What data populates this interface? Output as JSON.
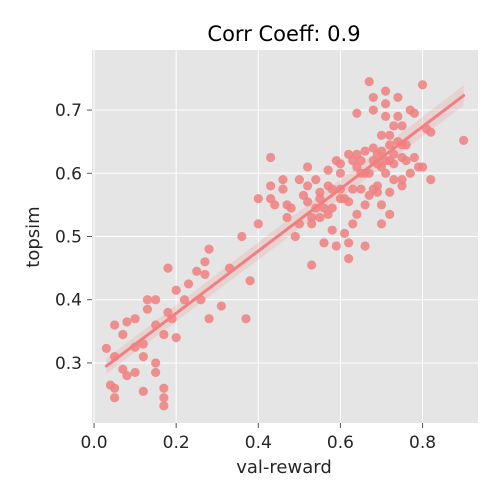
{
  "chart_data": {
    "type": "scatter",
    "title": "Corr Coeff: 0.9",
    "xlabel": "val-reward",
    "ylabel": "topsim",
    "xlim": [
      -0.005,
      0.935
    ],
    "ylim": [
      0.205,
      0.795
    ],
    "x_ticks": [
      "0.0",
      "0.2",
      "0.4",
      "0.6",
      "0.8"
    ],
    "x_tick_values": [
      0.0,
      0.2,
      0.4,
      0.6,
      0.8
    ],
    "y_ticks": [
      "0.3",
      "0.4",
      "0.5",
      "0.6",
      "0.7"
    ],
    "y_tick_values": [
      0.3,
      0.4,
      0.5,
      0.6,
      0.7
    ],
    "grid": true,
    "background": "#e5e5e5",
    "point_color": "#f08080",
    "regression": {
      "x": [
        0.03,
        0.9
      ],
      "y": [
        0.295,
        0.723
      ]
    },
    "points": [
      [
        0.03,
        0.323
      ],
      [
        0.04,
        0.265
      ],
      [
        0.05,
        0.245
      ],
      [
        0.05,
        0.26
      ],
      [
        0.05,
        0.36
      ],
      [
        0.05,
        0.31
      ],
      [
        0.07,
        0.345
      ],
      [
        0.07,
        0.29
      ],
      [
        0.08,
        0.28
      ],
      [
        0.08,
        0.365
      ],
      [
        0.1,
        0.37
      ],
      [
        0.1,
        0.325
      ],
      [
        0.1,
        0.285
      ],
      [
        0.12,
        0.255
      ],
      [
        0.12,
        0.31
      ],
      [
        0.12,
        0.33
      ],
      [
        0.13,
        0.385
      ],
      [
        0.13,
        0.4
      ],
      [
        0.15,
        0.4
      ],
      [
        0.15,
        0.36
      ],
      [
        0.15,
        0.3
      ],
      [
        0.15,
        0.285
      ],
      [
        0.17,
        0.26
      ],
      [
        0.17,
        0.245
      ],
      [
        0.17,
        0.232
      ],
      [
        0.17,
        0.345
      ],
      [
        0.18,
        0.38
      ],
      [
        0.18,
        0.45
      ],
      [
        0.19,
        0.37
      ],
      [
        0.2,
        0.415
      ],
      [
        0.2,
        0.34
      ],
      [
        0.22,
        0.4
      ],
      [
        0.23,
        0.425
      ],
      [
        0.25,
        0.445
      ],
      [
        0.26,
        0.4
      ],
      [
        0.27,
        0.44
      ],
      [
        0.27,
        0.46
      ],
      [
        0.28,
        0.48
      ],
      [
        0.28,
        0.37
      ],
      [
        0.31,
        0.39
      ],
      [
        0.33,
        0.45
      ],
      [
        0.36,
        0.5
      ],
      [
        0.37,
        0.37
      ],
      [
        0.38,
        0.43
      ],
      [
        0.4,
        0.52
      ],
      [
        0.4,
        0.56
      ],
      [
        0.43,
        0.56
      ],
      [
        0.43,
        0.58
      ],
      [
        0.43,
        0.625
      ],
      [
        0.44,
        0.55
      ],
      [
        0.46,
        0.59
      ],
      [
        0.46,
        0.575
      ],
      [
        0.47,
        0.55
      ],
      [
        0.47,
        0.53
      ],
      [
        0.48,
        0.545
      ],
      [
        0.49,
        0.5
      ],
      [
        0.5,
        0.52
      ],
      [
        0.5,
        0.59
      ],
      [
        0.51,
        0.565
      ],
      [
        0.52,
        0.61
      ],
      [
        0.52,
        0.58
      ],
      [
        0.52,
        0.555
      ],
      [
        0.53,
        0.53
      ],
      [
        0.53,
        0.52
      ],
      [
        0.53,
        0.455
      ],
      [
        0.54,
        0.545
      ],
      [
        0.54,
        0.59
      ],
      [
        0.55,
        0.57
      ],
      [
        0.55,
        0.53
      ],
      [
        0.55,
        0.56
      ],
      [
        0.56,
        0.545
      ],
      [
        0.56,
        0.49
      ],
      [
        0.57,
        0.605
      ],
      [
        0.57,
        0.58
      ],
      [
        0.57,
        0.535
      ],
      [
        0.58,
        0.575
      ],
      [
        0.58,
        0.545
      ],
      [
        0.58,
        0.51
      ],
      [
        0.59,
        0.485
      ],
      [
        0.59,
        0.62
      ],
      [
        0.6,
        0.575
      ],
      [
        0.6,
        0.56
      ],
      [
        0.6,
        0.6
      ],
      [
        0.61,
        0.505
      ],
      [
        0.61,
        0.56
      ],
      [
        0.62,
        0.555
      ],
      [
        0.62,
        0.465
      ],
      [
        0.62,
        0.49
      ],
      [
        0.62,
        0.63
      ],
      [
        0.63,
        0.52
      ],
      [
        0.63,
        0.575
      ],
      [
        0.63,
        0.62
      ],
      [
        0.64,
        0.695
      ],
      [
        0.64,
        0.61
      ],
      [
        0.64,
        0.535
      ],
      [
        0.65,
        0.6
      ],
      [
        0.65,
        0.62
      ],
      [
        0.66,
        0.485
      ],
      [
        0.66,
        0.6
      ],
      [
        0.66,
        0.635
      ],
      [
        0.66,
        0.55
      ],
      [
        0.67,
        0.565
      ],
      [
        0.67,
        0.6
      ],
      [
        0.67,
        0.745
      ],
      [
        0.68,
        0.72
      ],
      [
        0.68,
        0.7
      ],
      [
        0.68,
        0.64
      ],
      [
        0.68,
        0.62
      ],
      [
        0.69,
        0.63
      ],
      [
        0.69,
        0.58
      ],
      [
        0.69,
        0.57
      ],
      [
        0.7,
        0.635
      ],
      [
        0.7,
        0.66
      ],
      [
        0.7,
        0.61
      ],
      [
        0.7,
        0.55
      ],
      [
        0.7,
        0.52
      ],
      [
        0.71,
        0.73
      ],
      [
        0.71,
        0.69
      ],
      [
        0.71,
        0.62
      ],
      [
        0.71,
        0.6
      ],
      [
        0.72,
        0.62
      ],
      [
        0.72,
        0.645
      ],
      [
        0.72,
        0.66
      ],
      [
        0.72,
        0.57
      ],
      [
        0.72,
        0.535
      ],
      [
        0.73,
        0.675
      ],
      [
        0.73,
        0.63
      ],
      [
        0.73,
        0.59
      ],
      [
        0.74,
        0.72
      ],
      [
        0.74,
        0.65
      ],
      [
        0.74,
        0.69
      ],
      [
        0.75,
        0.675
      ],
      [
        0.75,
        0.645
      ],
      [
        0.75,
        0.625
      ],
      [
        0.75,
        0.58
      ],
      [
        0.76,
        0.62
      ],
      [
        0.77,
        0.7
      ],
      [
        0.77,
        0.6
      ],
      [
        0.78,
        0.695
      ],
      [
        0.78,
        0.625
      ],
      [
        0.79,
        0.61
      ],
      [
        0.8,
        0.74
      ],
      [
        0.8,
        0.61
      ],
      [
        0.81,
        0.67
      ],
      [
        0.82,
        0.59
      ],
      [
        0.82,
        0.665
      ],
      [
        0.9,
        0.652
      ],
      [
        0.6,
        0.615
      ],
      [
        0.64,
        0.63
      ],
      [
        0.69,
        0.615
      ],
      [
        0.73,
        0.615
      ],
      [
        0.75,
        0.59
      ],
      [
        0.68,
        0.575
      ],
      [
        0.65,
        0.575
      ],
      [
        0.71,
        0.71
      ],
      [
        0.76,
        0.645
      ]
    ]
  }
}
